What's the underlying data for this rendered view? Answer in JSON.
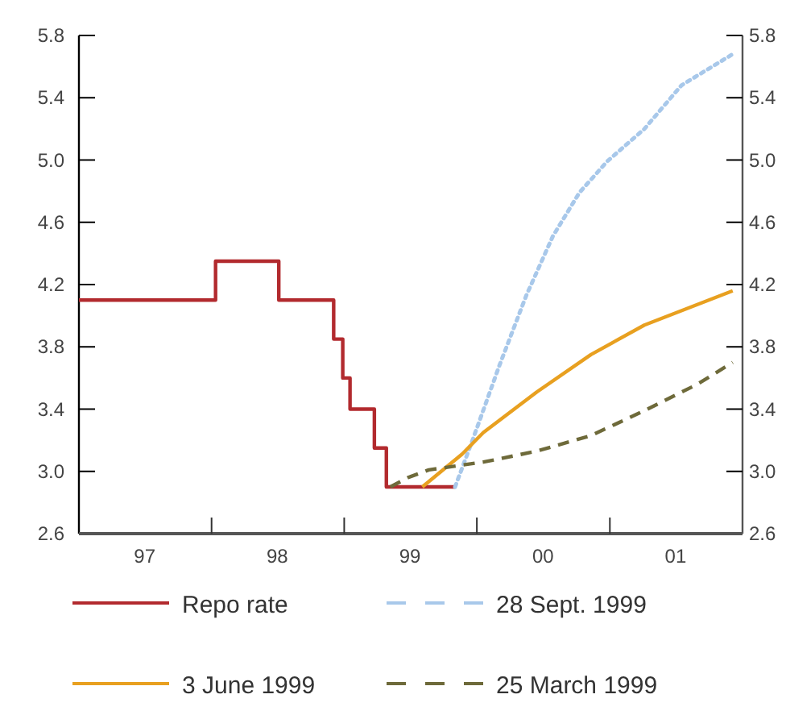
{
  "chart_data": {
    "type": "line",
    "xlim": [
      "1997-01-01",
      "2002-01-01"
    ],
    "xticks": [
      {
        "value": "1997-07-01",
        "label": "97"
      },
      {
        "value": "1998-01-01",
        "label": null
      },
      {
        "value": "1998-07-01",
        "label": "98"
      },
      {
        "value": "1999-01-01",
        "label": null
      },
      {
        "value": "1999-07-01",
        "label": "99"
      },
      {
        "value": "2000-01-01",
        "label": null
      },
      {
        "value": "2000-07-01",
        "label": "00"
      },
      {
        "value": "2001-01-01",
        "label": null
      },
      {
        "value": "2001-07-01",
        "label": "01"
      }
    ],
    "ylim": [
      2.6,
      5.8
    ],
    "yticks": [
      {
        "value": 2.6,
        "label": "2.6"
      },
      {
        "value": 3,
        "label": "3.0"
      },
      {
        "value": 3.4,
        "label": "3.4"
      },
      {
        "value": 3.8,
        "label": "3.8"
      },
      {
        "value": 4.2,
        "label": "4.2"
      },
      {
        "value": 4.6,
        "label": "4.6"
      },
      {
        "value": 5,
        "label": "5.0"
      },
      {
        "value": 5.4,
        "label": "5.4"
      },
      {
        "value": 5.8,
        "label": "5.8"
      }
    ],
    "y2lim": [
      2.6,
      5.8
    ],
    "y2ticks": [
      {
        "value": 2.6,
        "label": "2.6"
      },
      {
        "value": 3,
        "label": "3.0"
      },
      {
        "value": 3.4,
        "label": "3.4"
      },
      {
        "value": 3.8,
        "label": "3.8"
      },
      {
        "value": 4.2,
        "label": "4.2"
      },
      {
        "value": 4.6,
        "label": "4.6"
      },
      {
        "value": 5,
        "label": "5.0"
      },
      {
        "value": 5.4,
        "label": "5.4"
      },
      {
        "value": 5.8,
        "label": "5.8"
      }
    ],
    "grid": false,
    "legend": "bottom",
    "series": [
      {
        "name": "Repo rate",
        "color": "#b22a2e",
        "type": "step",
        "line_style": "solid",
        "x": [
          "1997-01-01",
          "1998-01-12",
          "1998-07-05",
          "1998-12-03",
          "1998-12-28",
          "1999-01-17",
          "1999-03-25",
          "1999-04-27",
          "1999-11-02"
        ],
        "values": [
          4.1,
          4.35,
          4.1,
          3.85,
          3.6,
          3.4,
          3.15,
          2.9,
          2.9
        ]
      },
      {
        "name": "28 Sept. 1999",
        "color": "#a8c8ea",
        "line_style": "dotted",
        "x": [
          "1999-11-02",
          "1999-12-20",
          "2000-03-03",
          "2000-05-16",
          "2000-07-28",
          "2000-10-09",
          "2000-12-24",
          "2001-04-06",
          "2001-07-17",
          "2001-12-05"
        ],
        "values": [
          2.9,
          3.2,
          3.68,
          4.13,
          4.51,
          4.79,
          4.99,
          5.2,
          5.48,
          5.68
        ]
      },
      {
        "name": "3 June 1999",
        "color": "#e8a020",
        "line_style": "solid",
        "x": [
          "1999-08-04",
          "1999-11-21",
          "2000-01-19",
          "2000-06-14",
          "2000-11-10",
          "2001-04-06",
          "2001-12-05"
        ],
        "values": [
          2.9,
          3.11,
          3.25,
          3.51,
          3.75,
          3.94,
          4.16
        ]
      },
      {
        "name": "25 March 1999",
        "color": "#6e6a3a",
        "line_style": "dashed",
        "x": [
          "1999-05-08",
          "1999-06-25",
          "1999-08-22",
          "2000-01-19",
          "2000-06-14",
          "2000-11-10",
          "2001-04-06",
          "2001-08-30",
          "2001-12-05"
        ],
        "values": [
          2.9,
          2.96,
          3.01,
          3.06,
          3.13,
          3.23,
          3.39,
          3.56,
          3.7
        ]
      }
    ]
  }
}
